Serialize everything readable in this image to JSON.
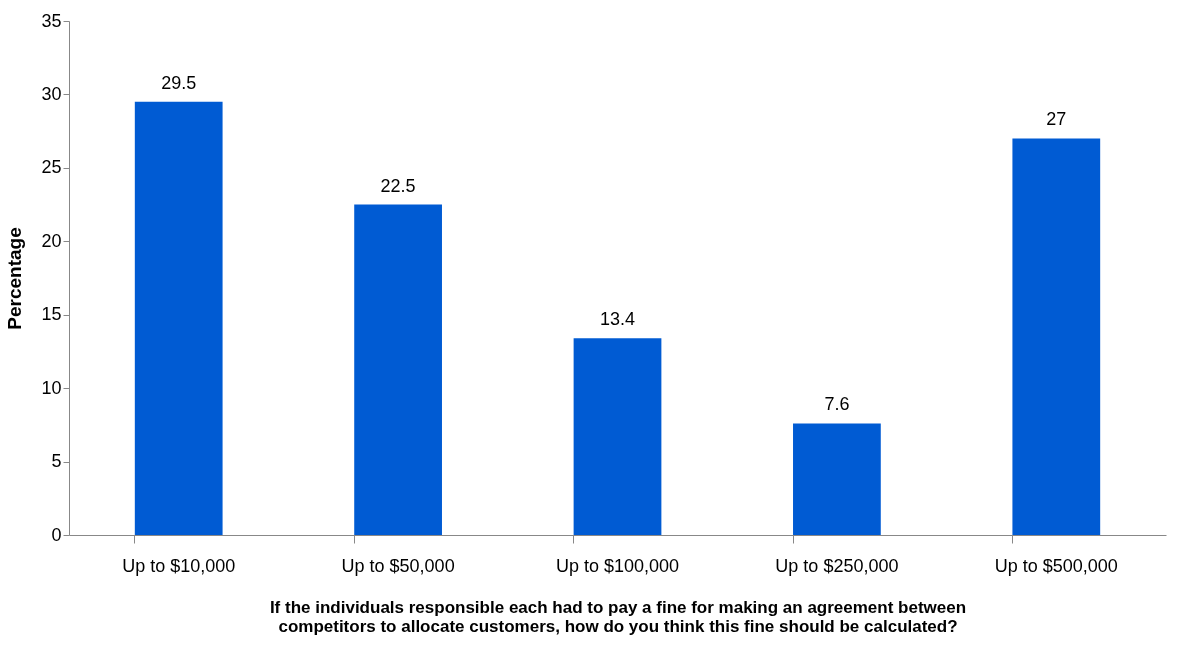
{
  "chart_data": {
    "type": "bar",
    "ylabel": "Percentage",
    "xlabel": "If the individuals responsible each had to pay a fine for making an agreement between\ncompetitors to allocate customers, how do you think this fine should be calculated?",
    "categories": [
      "Up to $10,000",
      "Up to $50,000",
      "Up to $100,000",
      "Up to $250,000",
      "Up to $500,000"
    ],
    "values": [
      29.5,
      22.5,
      13.4,
      7.6,
      27
    ],
    "color": "#005bd3",
    "ylim": [
      0,
      35
    ],
    "yticks": [
      0,
      5,
      10,
      15,
      20,
      25,
      30,
      35
    ],
    "data_labels": true,
    "grid": false
  }
}
